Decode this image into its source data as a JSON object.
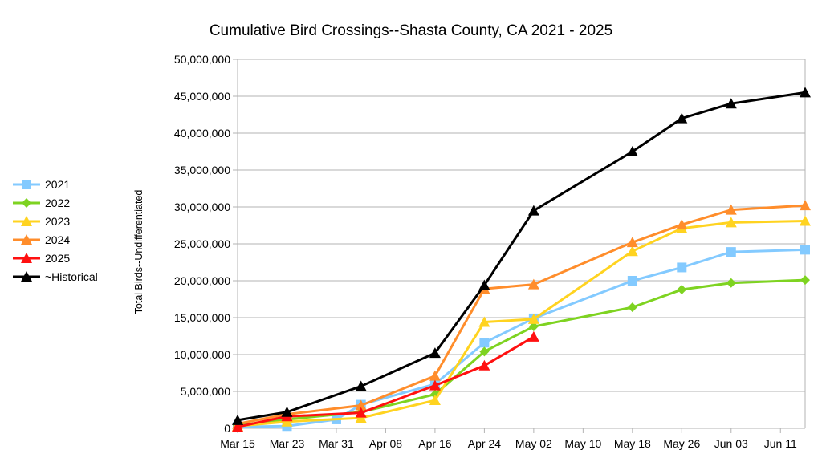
{
  "chart_data": {
    "type": "line",
    "title": "Cumulative Bird Crossings--Shasta County, CA 2021 - 2025",
    "xlabel": "",
    "ylabel": "Total Birds--Undifferentiated",
    "x_tick_labels": [
      "Mar 15",
      "Mar 23",
      "Mar 31",
      "Apr 08",
      "Apr 16",
      "Apr 24",
      "May 02",
      "May 10",
      "May 18",
      "May 26",
      "Jun 03",
      "Jun 11"
    ],
    "x_tick_days": [
      15,
      23,
      31,
      39,
      47,
      55,
      63,
      71,
      79,
      87,
      95,
      103
    ],
    "xlim_days": [
      15,
      107
    ],
    "x_note": "x values are day-of-year-style offsets where Mar 15 = 15 (days from Mar 1)",
    "ylim": [
      0,
      50000000
    ],
    "y_ticks": [
      0,
      5000000,
      10000000,
      15000000,
      20000000,
      25000000,
      30000000,
      35000000,
      40000000,
      45000000,
      50000000
    ],
    "y_tick_labels": [
      "0",
      "5,000,000",
      "10,000,000",
      "15,000,000",
      "20,000,000",
      "25,000,000",
      "30,000,000",
      "35,000,000",
      "40,000,000",
      "45,000,000",
      "50,000,000"
    ],
    "grid": "horizontal",
    "legend_position": "left",
    "series": [
      {
        "name": "2021",
        "color": "#83caff",
        "marker": "square",
        "x": [
          15,
          23,
          31,
          35,
          47,
          55,
          63,
          79,
          87,
          95,
          107
        ],
        "values": [
          200000,
          300000,
          1200000,
          3200000,
          6000000,
          11600000,
          14900000,
          20000000,
          21800000,
          23900000,
          24200000
        ]
      },
      {
        "name": "2022",
        "color": "#7ed321",
        "marker": "diamond",
        "x": [
          15,
          23,
          35,
          47,
          55,
          63,
          79,
          87,
          95,
          107
        ],
        "values": [
          400000,
          1200000,
          2200000,
          4600000,
          10400000,
          13800000,
          16400000,
          18800000,
          19700000,
          20100000
        ]
      },
      {
        "name": "2023",
        "color": "#ffd320",
        "marker": "triangle",
        "x": [
          15,
          23,
          35,
          47,
          55,
          63,
          79,
          87,
          95,
          107
        ],
        "values": [
          300000,
          900000,
          1400000,
          3800000,
          14400000,
          14800000,
          24000000,
          27100000,
          27900000,
          28100000
        ]
      },
      {
        "name": "2024",
        "color": "#ff8d2b",
        "marker": "triangle",
        "x": [
          15,
          23,
          35,
          47,
          55,
          63,
          79,
          87,
          95,
          107
        ],
        "values": [
          600000,
          1900000,
          3100000,
          7100000,
          18900000,
          19500000,
          25200000,
          27600000,
          29600000,
          30200000
        ]
      },
      {
        "name": "2025",
        "color": "#ff1010",
        "marker": "triangle",
        "x": [
          15,
          23,
          35,
          47,
          55,
          63
        ],
        "values": [
          200000,
          1600000,
          2100000,
          5800000,
          8500000,
          12400000
        ]
      },
      {
        "name": "~Historical",
        "color": "#000000",
        "marker": "triangle",
        "x": [
          15,
          23,
          35,
          47,
          55,
          63,
          79,
          87,
          95,
          107
        ],
        "values": [
          1100000,
          2200000,
          5700000,
          10200000,
          19400000,
          29500000,
          37500000,
          42000000,
          44000000,
          45500000
        ]
      }
    ]
  }
}
